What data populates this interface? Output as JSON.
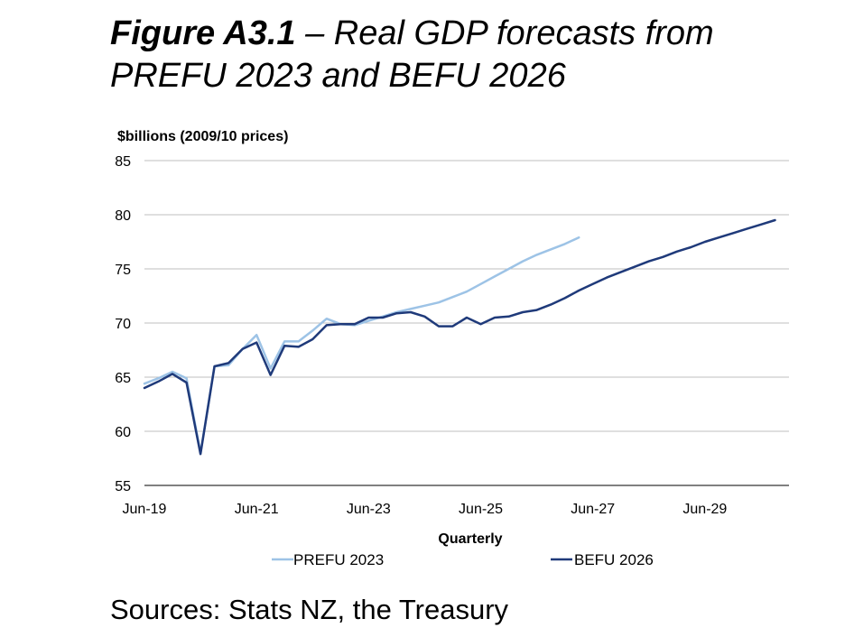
{
  "figure": {
    "label": "Figure A3.1",
    "title_rest": " – Real GDP forecasts from PREFU 2023 and BEFU 2026",
    "sources": "Sources: Stats NZ, the Treasury"
  },
  "colors": {
    "prefu": "#9DC3E6",
    "befu": "#1F3A7A",
    "grid": "#BFBFBF"
  },
  "chart_data": {
    "type": "line",
    "ylabel": "$billions (2009/10 prices)",
    "xlabel": "Quarterly",
    "ylim": [
      55,
      85
    ],
    "yticks": [
      55,
      60,
      65,
      70,
      75,
      80,
      85
    ],
    "xlim": [
      "2019-06",
      "2030-12"
    ],
    "xticks": [
      "Jun-19",
      "Jun-21",
      "Jun-23",
      "Jun-25",
      "Jun-27",
      "Jun-29"
    ],
    "grid": "horizontal",
    "legend_position": "bottom",
    "series": [
      {
        "name": "PREFU 2023",
        "x": [
          "2019-06",
          "2019-09",
          "2019-12",
          "2020-03",
          "2020-06",
          "2020-09",
          "2020-12",
          "2021-03",
          "2021-06",
          "2021-09",
          "2021-12",
          "2022-03",
          "2022-06",
          "2022-09",
          "2022-12",
          "2023-03",
          "2023-06",
          "2023-09",
          "2023-12",
          "2024-03",
          "2024-06",
          "2024-09",
          "2024-12",
          "2025-03",
          "2025-06",
          "2025-09",
          "2025-12",
          "2026-03",
          "2026-06",
          "2026-09",
          "2026-12",
          "2027-03",
          "2027-06"
        ],
        "values": [
          64.4,
          64.9,
          65.5,
          64.9,
          58.0,
          66.0,
          66.1,
          67.6,
          68.9,
          65.8,
          68.3,
          68.3,
          69.3,
          70.4,
          69.9,
          69.8,
          70.2,
          70.6,
          71.0,
          71.3,
          71.6,
          71.9,
          72.4,
          72.9,
          73.6,
          74.3,
          75.0,
          75.7,
          76.3,
          76.8,
          77.3,
          77.9,
          null
        ]
      },
      {
        "name": "BEFU 2026",
        "x": [
          "2019-06",
          "2019-09",
          "2019-12",
          "2020-03",
          "2020-06",
          "2020-09",
          "2020-12",
          "2021-03",
          "2021-06",
          "2021-09",
          "2021-12",
          "2022-03",
          "2022-06",
          "2022-09",
          "2022-12",
          "2023-03",
          "2023-06",
          "2023-09",
          "2023-12",
          "2024-03",
          "2024-06",
          "2024-09",
          "2024-12",
          "2025-03",
          "2025-06",
          "2025-09",
          "2025-12",
          "2026-03",
          "2026-06",
          "2026-09",
          "2026-12",
          "2027-03",
          "2027-06",
          "2027-09",
          "2027-12",
          "2028-03",
          "2028-06",
          "2028-09",
          "2028-12",
          "2029-03",
          "2029-06",
          "2029-09",
          "2029-12",
          "2030-03",
          "2030-06",
          "2030-09",
          "2030-12"
        ],
        "values": [
          64.0,
          64.6,
          65.3,
          64.5,
          57.9,
          66.0,
          66.3,
          67.6,
          68.2,
          65.2,
          67.9,
          67.8,
          68.5,
          69.8,
          69.9,
          69.9,
          70.5,
          70.5,
          70.9,
          71.0,
          70.6,
          69.7,
          69.7,
          70.5,
          69.9,
          70.5,
          70.6,
          71.0,
          71.2,
          71.7,
          72.3,
          73.0,
          73.6,
          74.2,
          74.7,
          75.2,
          75.7,
          76.1,
          76.6,
          77.0,
          77.5,
          77.9,
          78.3,
          78.7,
          79.1,
          79.5,
          null
        ]
      }
    ]
  }
}
